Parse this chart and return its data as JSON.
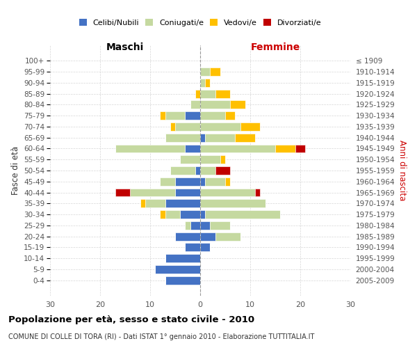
{
  "age_groups": [
    "100+",
    "95-99",
    "90-94",
    "85-89",
    "80-84",
    "75-79",
    "70-74",
    "65-69",
    "60-64",
    "55-59",
    "50-54",
    "45-49",
    "40-44",
    "35-39",
    "30-34",
    "25-29",
    "20-24",
    "15-19",
    "10-14",
    "5-9",
    "0-4"
  ],
  "birth_years": [
    "≤ 1909",
    "1910-1914",
    "1915-1919",
    "1920-1924",
    "1925-1929",
    "1930-1934",
    "1935-1939",
    "1940-1944",
    "1945-1949",
    "1950-1954",
    "1955-1959",
    "1960-1964",
    "1965-1969",
    "1970-1974",
    "1975-1979",
    "1980-1984",
    "1985-1989",
    "1990-1994",
    "1995-1999",
    "2000-2004",
    "2005-2009"
  ],
  "male": {
    "celibe": [
      0,
      0,
      0,
      0,
      0,
      3,
      0,
      0,
      3,
      0,
      1,
      5,
      5,
      7,
      4,
      2,
      5,
      3,
      7,
      9,
      7
    ],
    "coniugato": [
      0,
      0,
      0,
      0,
      2,
      4,
      5,
      7,
      14,
      4,
      5,
      3,
      9,
      4,
      3,
      1,
      0,
      0,
      0,
      0,
      0
    ],
    "vedovo": [
      0,
      0,
      0,
      1,
      0,
      1,
      1,
      0,
      0,
      0,
      0,
      0,
      0,
      1,
      1,
      0,
      0,
      0,
      0,
      0,
      0
    ],
    "divorziato": [
      0,
      0,
      0,
      0,
      0,
      0,
      0,
      0,
      0,
      0,
      0,
      0,
      3,
      0,
      0,
      0,
      0,
      0,
      0,
      0,
      0
    ]
  },
  "female": {
    "nubile": [
      0,
      0,
      0,
      0,
      0,
      0,
      0,
      1,
      0,
      0,
      0,
      1,
      0,
      0,
      1,
      2,
      3,
      2,
      0,
      0,
      0
    ],
    "coniugata": [
      0,
      2,
      1,
      3,
      6,
      5,
      8,
      6,
      15,
      4,
      3,
      4,
      11,
      13,
      15,
      4,
      5,
      0,
      0,
      0,
      0
    ],
    "vedova": [
      0,
      2,
      1,
      3,
      3,
      2,
      4,
      4,
      4,
      1,
      0,
      1,
      0,
      0,
      0,
      0,
      0,
      0,
      0,
      0,
      0
    ],
    "divorziata": [
      0,
      0,
      0,
      0,
      0,
      0,
      0,
      0,
      2,
      0,
      3,
      0,
      1,
      0,
      0,
      0,
      0,
      0,
      0,
      0,
      0
    ]
  },
  "colors": {
    "celibe": "#4472C4",
    "coniugato": "#c5d9a0",
    "vedovo": "#ffc000",
    "divorziato": "#c00000"
  },
  "title": "Popolazione per età, sesso e stato civile - 2010",
  "subtitle": "COMUNE DI COLLE DI TORA (RI) - Dati ISTAT 1° gennaio 2010 - Elaborazione TUTTITALIA.IT",
  "xlabel_left": "Maschi",
  "xlabel_right": "Femmine",
  "ylabel_left": "Fasce di età",
  "ylabel_right": "Anni di nascita",
  "xlim": 30,
  "legend_labels": [
    "Celibi/Nubili",
    "Coniugati/e",
    "Vedovi/e",
    "Divorziati/e"
  ],
  "background_color": "#ffffff",
  "grid_color": "#cccccc",
  "bar_height": 0.75
}
